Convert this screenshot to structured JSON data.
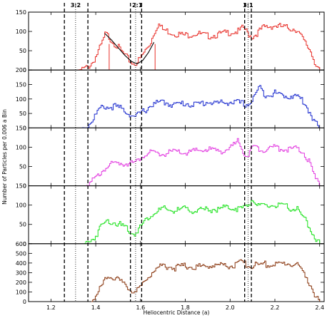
{
  "chart_data": {
    "type": "line",
    "title": "",
    "xlabel": "Heliocentric Distance (a)",
    "ylabel": "Number of Particles per 0.006 a Bin",
    "xlim": [
      1.1,
      2.42
    ],
    "x_ticks": [
      1.2,
      1.4,
      1.6,
      1.8,
      2.0,
      2.2,
      2.4
    ],
    "grid": false,
    "legend": "none",
    "resonances": [
      {
        "label": "3:2",
        "x": 1.31,
        "lines": [
          {
            "x": 1.26,
            "style": "dashed"
          },
          {
            "x": 1.31,
            "style": "dotted"
          },
          {
            "x": 1.365,
            "style": "dashed"
          }
        ]
      },
      {
        "label": "2:1",
        "x": 1.585,
        "lines": [
          {
            "x": 1.555,
            "style": "dashed"
          },
          {
            "x": 1.578,
            "style": "dotted"
          },
          {
            "x": 1.605,
            "style": "dashed"
          }
        ]
      },
      {
        "label": "3:1",
        "x": 2.08,
        "lines": [
          {
            "x": 2.065,
            "style": "dashed"
          },
          {
            "x": 2.08,
            "style": "dotted"
          },
          {
            "x": 2.095,
            "style": "dashed"
          }
        ]
      }
    ],
    "panels": [
      {
        "color": "#e8302a",
        "ylim": [
          0,
          150
        ],
        "yticks": [
          0,
          50,
          100,
          150
        ],
        "points": [
          [
            1.32,
            0
          ],
          [
            1.35,
            3
          ],
          [
            1.37,
            10
          ],
          [
            1.39,
            22
          ],
          [
            1.41,
            45
          ],
          [
            1.43,
            70
          ],
          [
            1.445,
            95
          ],
          [
            1.46,
            85
          ],
          [
            1.48,
            72
          ],
          [
            1.5,
            60
          ],
          [
            1.52,
            45
          ],
          [
            1.54,
            32
          ],
          [
            1.56,
            20
          ],
          [
            1.57,
            16
          ],
          [
            1.585,
            20
          ],
          [
            1.6,
            30
          ],
          [
            1.62,
            48
          ],
          [
            1.645,
            70
          ],
          [
            1.66,
            95
          ],
          [
            1.68,
            120
          ],
          [
            1.7,
            105
          ],
          [
            1.75,
            95
          ],
          [
            1.8,
            90
          ],
          [
            1.85,
            95
          ],
          [
            1.9,
            88
          ],
          [
            1.95,
            92
          ],
          [
            2.0,
            98
          ],
          [
            2.04,
            100
          ],
          [
            2.06,
            110
          ],
          [
            2.08,
            95
          ],
          [
            2.1,
            85
          ],
          [
            2.15,
            110
          ],
          [
            2.2,
            115
          ],
          [
            2.25,
            110
          ],
          [
            2.3,
            105
          ],
          [
            2.33,
            75
          ],
          [
            2.36,
            50
          ],
          [
            2.38,
            20
          ],
          [
            2.4,
            0
          ]
        ],
        "fit_curve": [
          [
            1.44,
            95
          ],
          [
            1.47,
            78
          ],
          [
            1.5,
            58
          ],
          [
            1.53,
            38
          ],
          [
            1.56,
            22
          ],
          [
            1.585,
            16
          ],
          [
            1.61,
            25
          ],
          [
            1.635,
            45
          ],
          [
            1.66,
            72
          ]
        ],
        "fit_markers": [
          1.46,
          1.665
        ]
      },
      {
        "color": "#1f2fcf",
        "ylim": [
          0,
          200
        ],
        "yticks": [
          0,
          50,
          100,
          150,
          200
        ],
        "points": [
          [
            1.34,
            0
          ],
          [
            1.36,
            5
          ],
          [
            1.38,
            20
          ],
          [
            1.4,
            45
          ],
          [
            1.42,
            65
          ],
          [
            1.44,
            75
          ],
          [
            1.46,
            70
          ],
          [
            1.48,
            75
          ],
          [
            1.5,
            70
          ],
          [
            1.52,
            65
          ],
          [
            1.54,
            55
          ],
          [
            1.56,
            45
          ],
          [
            1.575,
            35
          ],
          [
            1.59,
            45
          ],
          [
            1.62,
            60
          ],
          [
            1.65,
            80
          ],
          [
            1.7,
            90
          ],
          [
            1.75,
            80
          ],
          [
            1.8,
            85
          ],
          [
            1.85,
            80
          ],
          [
            1.9,
            90
          ],
          [
            1.95,
            85
          ],
          [
            2.0,
            90
          ],
          [
            2.05,
            85
          ],
          [
            2.08,
            80
          ],
          [
            2.1,
            95
          ],
          [
            2.13,
            140
          ],
          [
            2.16,
            115
          ],
          [
            2.2,
            120
          ],
          [
            2.25,
            110
          ],
          [
            2.3,
            110
          ],
          [
            2.33,
            90
          ],
          [
            2.36,
            50
          ],
          [
            2.38,
            20
          ],
          [
            2.4,
            0
          ]
        ]
      },
      {
        "color": "#e23be0",
        "ylim": [
          0,
          150
        ],
        "yticks": [
          0,
          50,
          100,
          150
        ],
        "points": [
          [
            1.36,
            0
          ],
          [
            1.38,
            8
          ],
          [
            1.41,
            25
          ],
          [
            1.44,
            45
          ],
          [
            1.47,
            55
          ],
          [
            1.5,
            60
          ],
          [
            1.53,
            58
          ],
          [
            1.56,
            62
          ],
          [
            1.575,
            55
          ],
          [
            1.59,
            65
          ],
          [
            1.61,
            80
          ],
          [
            1.65,
            85
          ],
          [
            1.7,
            82
          ],
          [
            1.75,
            88
          ],
          [
            1.8,
            85
          ],
          [
            1.85,
            90
          ],
          [
            1.9,
            95
          ],
          [
            1.95,
            90
          ],
          [
            2.0,
            95
          ],
          [
            2.04,
            118
          ],
          [
            2.06,
            90
          ],
          [
            2.08,
            75
          ],
          [
            2.1,
            100
          ],
          [
            2.15,
            95
          ],
          [
            2.2,
            100
          ],
          [
            2.25,
            95
          ],
          [
            2.3,
            95
          ],
          [
            2.33,
            85
          ],
          [
            2.36,
            55
          ],
          [
            2.38,
            20
          ],
          [
            2.4,
            0
          ]
        ]
      },
      {
        "color": "#1de21d",
        "ylim": [
          0,
          150
        ],
        "yticks": [
          0,
          50,
          100,
          150
        ],
        "points": [
          [
            1.35,
            0
          ],
          [
            1.37,
            5
          ],
          [
            1.4,
            20
          ],
          [
            1.43,
            50
          ],
          [
            1.46,
            60
          ],
          [
            1.49,
            55
          ],
          [
            1.52,
            45
          ],
          [
            1.55,
            35
          ],
          [
            1.57,
            25
          ],
          [
            1.59,
            35
          ],
          [
            1.62,
            60
          ],
          [
            1.66,
            80
          ],
          [
            1.7,
            90
          ],
          [
            1.75,
            85
          ],
          [
            1.8,
            90
          ],
          [
            1.85,
            85
          ],
          [
            1.9,
            88
          ],
          [
            1.95,
            90
          ],
          [
            2.0,
            95
          ],
          [
            2.05,
            90
          ],
          [
            2.08,
            100
          ],
          [
            2.1,
            115
          ],
          [
            2.13,
            95
          ],
          [
            2.2,
            100
          ],
          [
            2.25,
            95
          ],
          [
            2.3,
            90
          ],
          [
            2.33,
            65
          ],
          [
            2.36,
            40
          ],
          [
            2.38,
            15
          ],
          [
            2.4,
            0
          ]
        ]
      },
      {
        "color": "#8c3b14",
        "ylim": [
          0,
          600
        ],
        "yticks": [
          0,
          100,
          200,
          300,
          400,
          500,
          600
        ],
        "points": [
          [
            1.38,
            0
          ],
          [
            1.41,
            80
          ],
          [
            1.44,
            220
          ],
          [
            1.46,
            280
          ],
          [
            1.48,
            250
          ],
          [
            1.5,
            220
          ],
          [
            1.53,
            170
          ],
          [
            1.56,
            120
          ],
          [
            1.58,
            100
          ],
          [
            1.6,
            140
          ],
          [
            1.63,
            250
          ],
          [
            1.66,
            320
          ],
          [
            1.7,
            380
          ],
          [
            1.75,
            350
          ],
          [
            1.8,
            370
          ],
          [
            1.85,
            360
          ],
          [
            1.9,
            370
          ],
          [
            1.95,
            380
          ],
          [
            2.0,
            370
          ],
          [
            2.05,
            400
          ],
          [
            2.08,
            380
          ],
          [
            2.1,
            370
          ],
          [
            2.15,
            390
          ],
          [
            2.2,
            380
          ],
          [
            2.25,
            400
          ],
          [
            2.3,
            380
          ],
          [
            2.33,
            300
          ],
          [
            2.36,
            180
          ],
          [
            2.38,
            50
          ],
          [
            2.4,
            0
          ]
        ]
      }
    ]
  }
}
